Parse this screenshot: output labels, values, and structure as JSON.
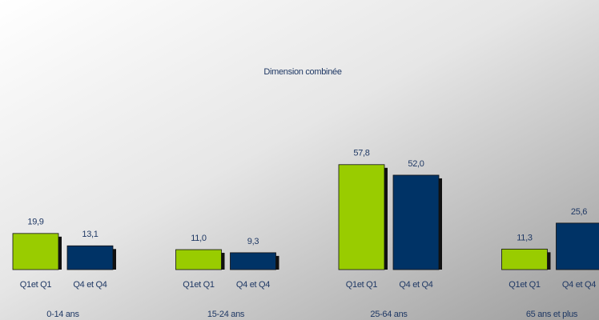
{
  "chart_data": {
    "type": "bar",
    "title": "Dimension combinée",
    "categories": [
      "0-14 ans",
      "15-24 ans",
      "25-64 ans",
      "65 ans et plus"
    ],
    "series": [
      {
        "name": "Q1et Q1",
        "color": "#99cc00",
        "values": [
          19.9,
          11.0,
          57.8,
          11.3
        ],
        "value_labels": [
          "19,9",
          "11,0",
          "57,8",
          "11,3"
        ]
      },
      {
        "name": "Q4 et Q4",
        "color": "#003366",
        "values": [
          13.1,
          9.3,
          52.0,
          25.6
        ],
        "value_labels": [
          "13,1",
          "9,3",
          "52,0",
          "25,6"
        ]
      }
    ]
  }
}
